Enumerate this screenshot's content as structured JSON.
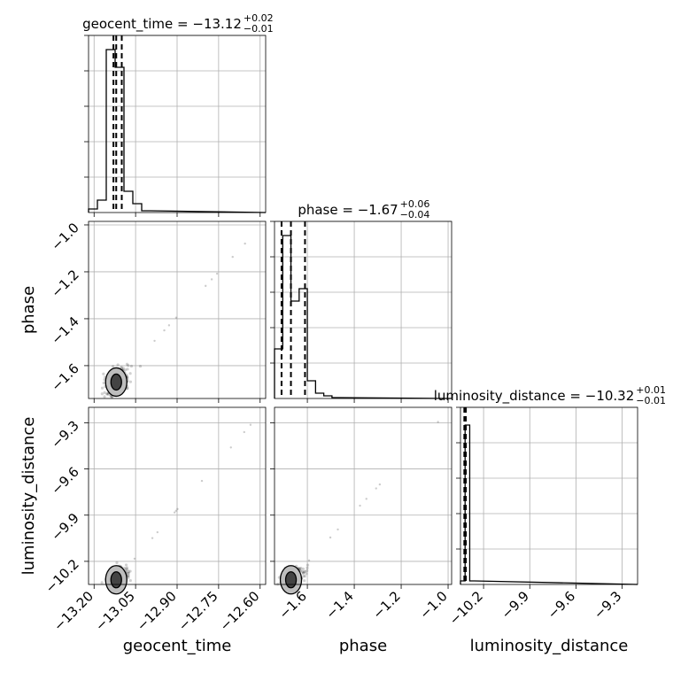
{
  "chart_data": {
    "type": "corner",
    "parameters": [
      "geocent_time",
      "phase",
      "luminosity_distance"
    ],
    "axis_labels": {
      "geocent_time": "geocent_time",
      "phase": "phase",
      "luminosity_distance": "luminosity_distance"
    },
    "ranges": {
      "geocent_time": [
        -13.22,
        -12.58
      ],
      "phase": [
        -1.74,
        -0.985
      ],
      "luminosity_distance": [
        -10.35,
        -9.2
      ]
    },
    "ticks": {
      "geocent_time": [
        -13.2,
        -13.05,
        -12.9,
        -12.75,
        -12.6
      ],
      "phase": [
        -1.6,
        -1.4,
        -1.2,
        -1.0
      ],
      "luminosity_distance": [
        -10.2,
        -9.9,
        -9.6,
        -9.3
      ]
    },
    "tick_labels": {
      "geocent_time": [
        "−13.20",
        "−13.05",
        "−12.90",
        "−12.75",
        "−12.60"
      ],
      "phase": [
        "−1.6",
        "−1.4",
        "−1.2",
        "−1.0"
      ],
      "luminosity_distance": [
        "−10.2",
        "−9.9",
        "−9.6",
        "−9.3"
      ]
    },
    "titles": [
      {
        "param": "geocent_time",
        "text": "geocent_time = −13.12",
        "sup": "+0.02",
        "sub": "−0.01"
      },
      {
        "param": "phase",
        "text": "phase = −1.67",
        "sup": "+0.06",
        "sub": "−0.04"
      },
      {
        "param": "luminosity_distance",
        "text": "luminosity_distance = −10.32",
        "sup": "+0.01",
        "sub": "−0.01"
      }
    ],
    "histograms": {
      "geocent_time": {
        "edges": [
          -13.22,
          -13.188,
          -13.156,
          -13.124,
          -13.092,
          -13.06,
          -13.028,
          -12.996
        ],
        "counts": [
          0.02,
          0.07,
          0.92,
          0.82,
          0.12,
          0.05,
          0.01
        ],
        "quantiles": [
          -13.13,
          -13.12,
          -13.1
        ]
      },
      "phase": {
        "edges": [
          -1.74,
          -1.705,
          -1.67,
          -1.635,
          -1.6,
          -1.565,
          -1.53,
          -1.495,
          -1.46
        ],
        "counts": [
          0.28,
          0.92,
          0.55,
          0.62,
          0.1,
          0.03,
          0.015,
          0.005
        ],
        "quantiles": [
          -1.71,
          -1.67,
          -1.61
        ]
      },
      "luminosity_distance": {
        "edges": [
          -10.35,
          -10.32,
          -10.29,
          -10.26
        ],
        "counts": [
          0.02,
          0.9,
          0.02
        ],
        "quantiles": [
          -10.325,
          -10.32,
          -10.315
        ]
      }
    },
    "grid": true
  }
}
